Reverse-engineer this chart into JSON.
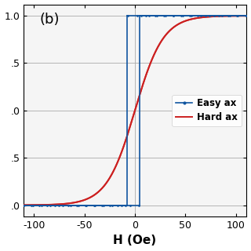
{
  "title": "(b)",
  "xlabel": "H (Oe)",
  "xlim": [
    -110,
    110
  ],
  "ylim": [
    -1.12,
    1.12
  ],
  "yticks": [
    -1.0,
    -0.5,
    0.0,
    0.5,
    1.0
  ],
  "ytick_labels": [
    ".0",
    ".5",
    ".0",
    ".5",
    "1.0"
  ],
  "xticks": [
    -100,
    -50,
    0,
    50,
    100
  ],
  "xtick_labels": [
    "-100",
    "-50",
    "0",
    "50",
    "100"
  ],
  "easy_color": "#1055a0",
  "hard_color": "#cc2020",
  "background": "#f5f5f5",
  "legend_easy": "Easy ax",
  "legend_hard": "Hard ax",
  "coercive_field_fwd": -8,
  "coercive_field_bwd": 5,
  "hard_scale": 28,
  "figsize": [
    3.2,
    3.2
  ],
  "dpi": 100
}
